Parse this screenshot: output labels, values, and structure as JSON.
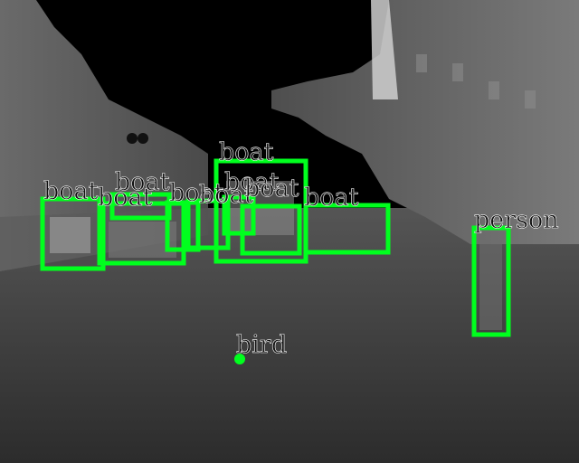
{
  "image": {
    "kind": "thermal-street-scene-with-object-detections",
    "colors": {
      "box": "#00ff1e",
      "label_text": "#111111",
      "sky": "#000000",
      "road": "#3a3a3a"
    }
  },
  "detections": [
    {
      "id": "boat-1",
      "label": "boat"
    },
    {
      "id": "boat-2",
      "label": "boat"
    },
    {
      "id": "boat-3",
      "label": "boat"
    },
    {
      "id": "boat-4",
      "label": "boat"
    },
    {
      "id": "boat-5",
      "label": "boat"
    },
    {
      "id": "boat-6",
      "label": "boat"
    },
    {
      "id": "boat-7",
      "label": "boat"
    },
    {
      "id": "boat-8",
      "label": "boat"
    },
    {
      "id": "boat-9",
      "label": "boat"
    },
    {
      "id": "person-1",
      "label": "person"
    },
    {
      "id": "bird-1",
      "label": "bird"
    }
  ]
}
